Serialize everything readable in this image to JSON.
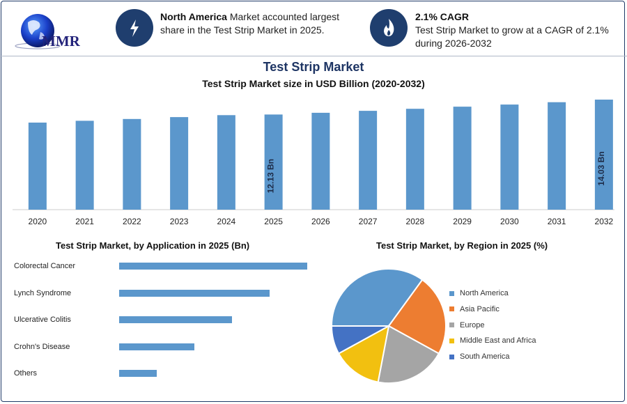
{
  "logo": {
    "text": "MMR"
  },
  "kpis": [
    {
      "icon": "bolt-icon",
      "bold": "North America",
      "line1_rest": " Market accounted largest",
      "line2": "share in the Test Strip Market in 2025."
    },
    {
      "icon": "flame-icon",
      "bold": "2.1% CAGR",
      "line1_rest": "",
      "line2": "Test Strip Market to grow at a CAGR of 2.1%",
      "line3": "during 2026-2032"
    }
  ],
  "header": {
    "title": "Test Strip Market",
    "subtitle": "Test Strip Market size in USD Billion (2020-2032)"
  },
  "colors": {
    "bar": "#5b97cc",
    "navy": "#1f3e6e",
    "north_america": "#5b97cc",
    "asia_pacific": "#ed7d31",
    "europe": "#a5a5a5",
    "mea": "#f2c010",
    "south_america": "#4472c4"
  },
  "chart_data": [
    {
      "type": "bar",
      "title": "Test Strip Market size in USD Billion (2020-2032)",
      "categories": [
        "2020",
        "2021",
        "2022",
        "2023",
        "2024",
        "2025",
        "2026",
        "2027",
        "2028",
        "2029",
        "2030",
        "2031",
        "2032"
      ],
      "values": [
        11.1,
        11.33,
        11.56,
        11.8,
        12.05,
        12.13,
        12.35,
        12.6,
        12.86,
        13.13,
        13.4,
        13.7,
        14.03
      ],
      "data_labels": {
        "2025": "12.13 Bn",
        "2032": "14.03 Bn"
      },
      "ylim": [
        0,
        14.03
      ]
    },
    {
      "type": "bar",
      "orientation": "horizontal",
      "title": "Test Strip Market, by Application in 2025 (Bn)",
      "categories": [
        "Colorectal Cancer",
        "Lynch Syndrome",
        "Ulcerative Colitis",
        "Crohn's Disease",
        "Others"
      ],
      "values": [
        4.0,
        3.2,
        2.4,
        1.6,
        0.8
      ]
    },
    {
      "type": "pie",
      "title": "Test Strip Market, by Region in 2025 (%)",
      "categories": [
        "North America",
        "Asia Pacific",
        "Europe",
        "Middle East and Africa",
        "South America"
      ],
      "values": [
        35,
        23,
        20,
        14,
        8
      ],
      "legend": "right"
    }
  ]
}
